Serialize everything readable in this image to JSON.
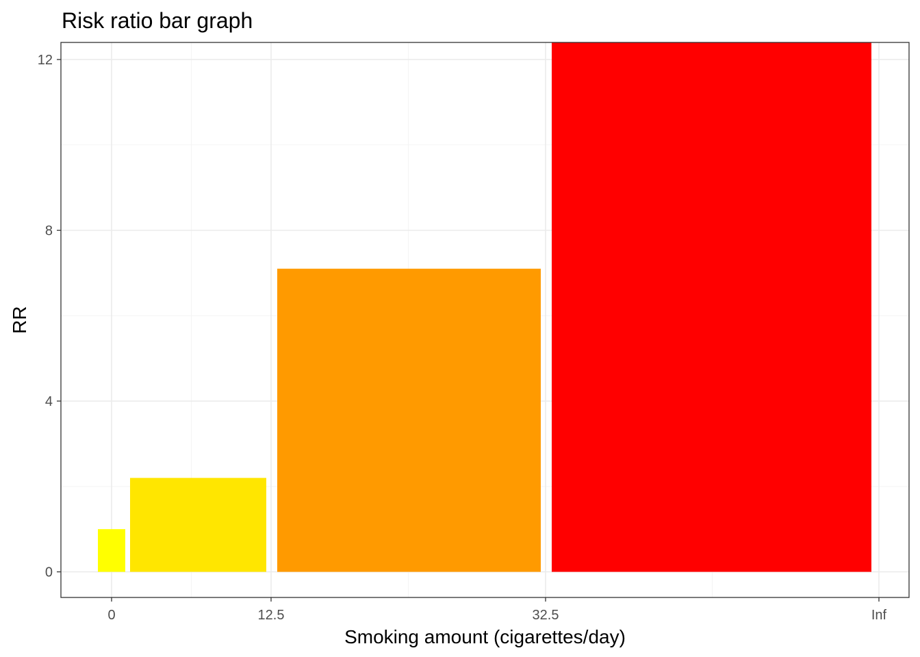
{
  "chart_data": {
    "type": "bar",
    "title": "Risk ratio bar graph",
    "xlabel": "Smoking amount (cigarettes/day)",
    "ylabel": "RR",
    "x_tick_labels": [
      "0",
      "12.5",
      "32.5",
      "Inf"
    ],
    "y_ticks": [
      0,
      4,
      8,
      12
    ],
    "ylim": [
      -0.6,
      12.4
    ],
    "grid": true,
    "legend": "none",
    "bars": [
      {
        "x_start": "0",
        "x_end": "0",
        "value": 1.0,
        "color": "#ffff00"
      },
      {
        "x_start": "0",
        "x_end": "12.5",
        "value": 2.2,
        "color": "#ffe600"
      },
      {
        "x_start": "12.5",
        "x_end": "32.5",
        "value": 7.1,
        "color": "#ff9a00"
      },
      {
        "x_start": "32.5",
        "x_end": "Inf",
        "value": 12.4,
        "color": "#ff0000"
      }
    ]
  }
}
